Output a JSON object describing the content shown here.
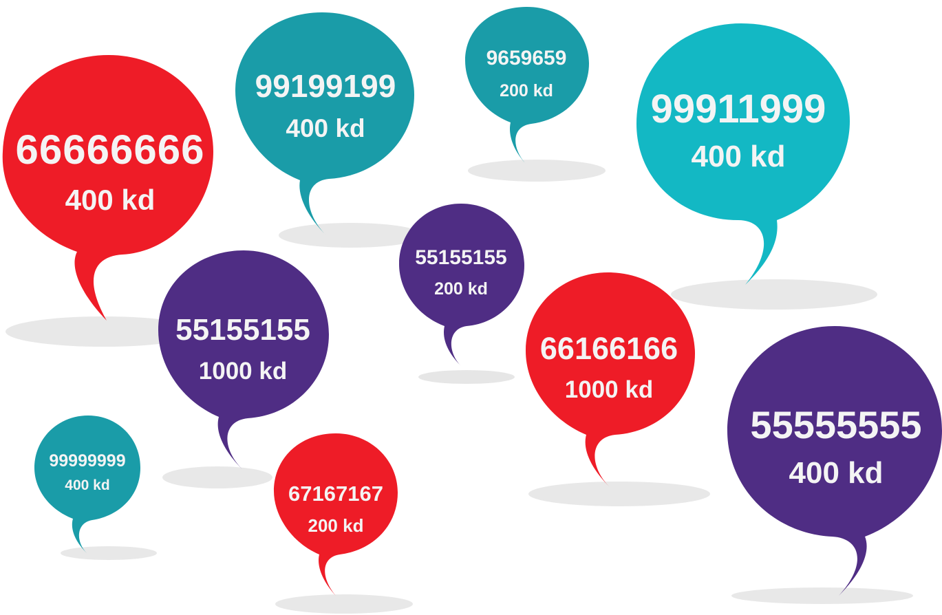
{
  "colors": {
    "red": "#ee1c27",
    "teal": "#1a9ca8",
    "cyan": "#13b8c4",
    "purple": "#4f2d84",
    "shadow": "#e6e6e6",
    "text": "#f4f4f4"
  },
  "bubbles": [
    {
      "number": "66666666",
      "price": "400 kd",
      "color": "red"
    },
    {
      "number": "99199199",
      "price": "400 kd",
      "color": "teal"
    },
    {
      "number": "9659659",
      "price": "200 kd",
      "color": "teal"
    },
    {
      "number": "99911999",
      "price": "400 kd",
      "color": "cyan"
    },
    {
      "number": "55155155",
      "price": "200 kd",
      "color": "purple"
    },
    {
      "number": "55155155",
      "price": "1000 kd",
      "color": "purple"
    },
    {
      "number": "66166166",
      "price": "1000 kd",
      "color": "red"
    },
    {
      "number": "55555555",
      "price": "400 kd",
      "color": "purple"
    },
    {
      "number": "99999999",
      "price": "400 kd",
      "color": "teal"
    },
    {
      "number": "67167167",
      "price": "200 kd",
      "color": "red"
    }
  ]
}
